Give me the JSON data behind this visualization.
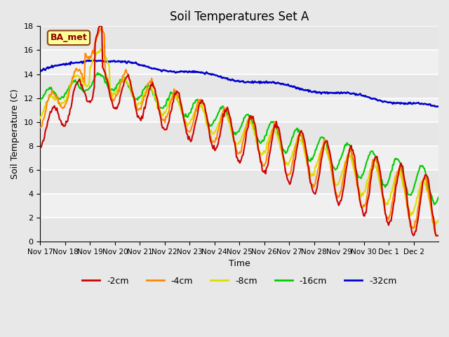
{
  "title": "Soil Temperatures Set A",
  "xlabel": "Time",
  "ylabel": "Soil Temperature (C)",
  "ylim": [
    0,
    18
  ],
  "yticks": [
    0,
    2,
    4,
    6,
    8,
    10,
    12,
    14,
    16,
    18
  ],
  "background_color": "#e8e8e8",
  "plot_bg_color": "#f0f0f0",
  "legend_label": "BA_met",
  "legend_bg": "#ffff99",
  "legend_border": "#8b4513",
  "series_colors": {
    "-2cm": "#cc0000",
    "-4cm": "#ff8800",
    "-8cm": "#dddd00",
    "-16cm": "#00cc00",
    "-32cm": "#0000cc"
  },
  "xtick_labels": [
    "Nov 17",
    "Nov 18",
    "Nov 19",
    "Nov 20",
    "Nov 21",
    "Nov 22",
    "Nov 23",
    "Nov 24",
    "Nov 25",
    "Nov 26",
    "Nov 27",
    "Nov 28",
    "Nov 29",
    "Nov 30",
    "Dec 1",
    "Dec 2"
  ],
  "num_points": 480
}
